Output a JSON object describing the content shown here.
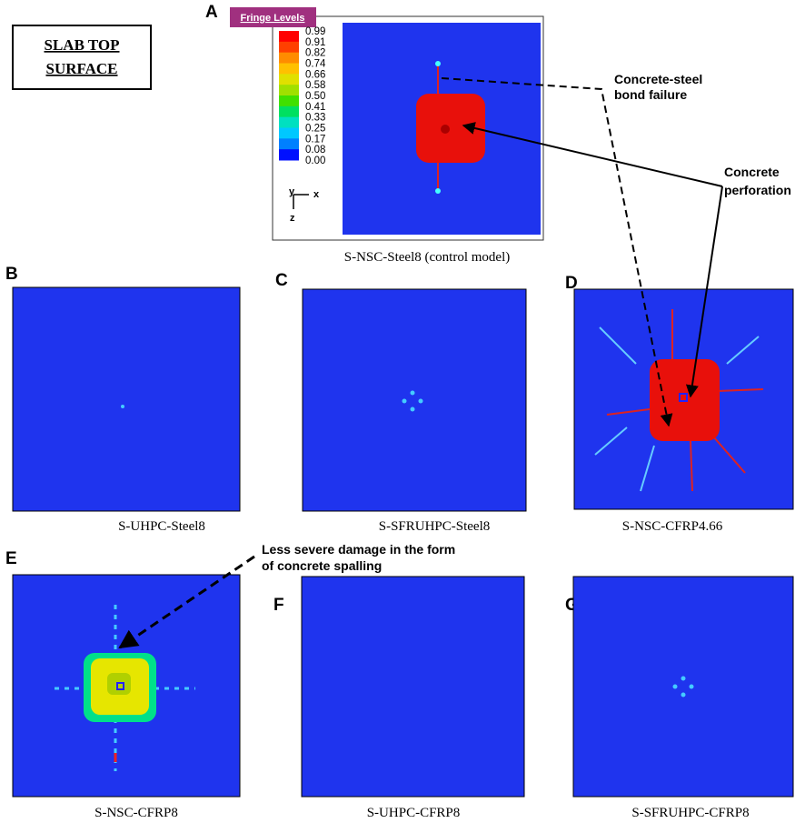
{
  "header": {
    "title": [
      "SLAB TOP",
      "SURFACE"
    ]
  },
  "legend": {
    "title": "Fringe Levels",
    "levels": [
      "0.99",
      "0.91",
      "0.82",
      "0.74",
      "0.66",
      "0.58",
      "0.50",
      "0.41",
      "0.33",
      "0.25",
      "0.17",
      "0.08",
      "0.00"
    ],
    "axes": {
      "y": "y",
      "x": "x",
      "z": "z"
    }
  },
  "panels": [
    {
      "letter": "A",
      "caption": "S-NSC-Steel8 (control model)"
    },
    {
      "letter": "B",
      "caption": "S-UHPC-Steel8"
    },
    {
      "letter": "C",
      "caption": "S-SFRUHPC-Steel8"
    },
    {
      "letter": "D",
      "caption": "S-NSC-CFRP4.66"
    },
    {
      "letter": "E",
      "caption": "S-NSC-CFRP8"
    },
    {
      "letter": "F",
      "caption": "S-UHPC-CFRP8"
    },
    {
      "letter": "G",
      "caption": "S-SFRUHPC-CFRP8"
    }
  ],
  "annotations": [
    {
      "lines": [
        "Concrete-steel",
        "bond failure"
      ]
    },
    {
      "lines": [
        "Concrete",
        "perforation"
      ]
    },
    {
      "lines": [
        "Less severe damage in the form",
        "of concrete spalling"
      ]
    }
  ]
}
